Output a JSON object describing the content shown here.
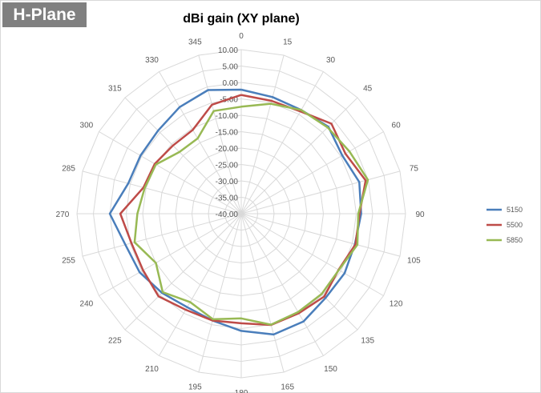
{
  "badge_label": "H-Plane",
  "chart_data": {
    "type": "radar",
    "title": "dBi gain (XY plane)",
    "angles": [
      0,
      15,
      30,
      45,
      60,
      75,
      90,
      105,
      120,
      135,
      150,
      165,
      180,
      195,
      210,
      225,
      240,
      255,
      270,
      285,
      300,
      315,
      330,
      345
    ],
    "radial_ticks": [
      "10.00",
      "5.00",
      "0.00",
      "-5.00",
      "-10.00",
      "-15.00",
      "-20.00",
      "-25.00",
      "-30.00",
      "-35.00",
      "-40.00"
    ],
    "rlim": [
      -40,
      10
    ],
    "grid": true,
    "legend_position": "right",
    "series": [
      {
        "name": "5150",
        "color": "#4a7ebb",
        "values": [
          -2.2,
          -3.2,
          -3.5,
          -2.5,
          -4.5,
          -2.8,
          -3.5,
          -4.2,
          -3.7,
          -3.7,
          -2.1,
          -1.9,
          -4.3,
          -6.3,
          -7.1,
          -5.9,
          -4.3,
          -3.5,
          0.0,
          -4.4,
          -4.6,
          -4.2,
          -2.5,
          -1.0
        ]
      },
      {
        "name": "5500",
        "color": "#be4b48",
        "values": [
          -3.8,
          -4.4,
          -4.0,
          -1.2,
          -3.4,
          -0.8,
          -4.0,
          -4.0,
          -5.8,
          -4.3,
          -5.0,
          -4.9,
          -6.6,
          -6.3,
          -6.2,
          -4.4,
          -5.5,
          -5.4,
          -3.2,
          -9.2,
          -9.6,
          -10.6,
          -10.5,
          -5.6
        ]
      },
      {
        "name": "5850",
        "color": "#98b954",
        "values": [
          -7.4,
          -5.3,
          -3.5,
          -2.8,
          -2.0,
          -0.1,
          -4.4,
          -3.4,
          -5.7,
          -5.4,
          -5.4,
          -5.0,
          -8.1,
          -6.7,
          -8.9,
          -6.2,
          -10.0,
          -6.4,
          -8.4,
          -9.6,
          -10.0,
          -13.4,
          -13.5,
          -7.6
        ]
      }
    ]
  }
}
